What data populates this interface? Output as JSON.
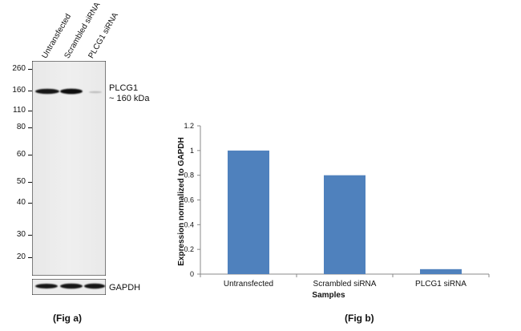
{
  "figure_a": {
    "caption": "(Fig a)",
    "lanes": [
      "Untransfected",
      "Scrambled siRNA",
      "PLCG1 siRNA"
    ],
    "markers": [
      "260",
      "160",
      "110",
      "80",
      "60",
      "50",
      "40",
      "30",
      "20"
    ],
    "band_label": "PLCG1",
    "band_size": "~ 160 kDa",
    "loading_control": "GAPDH"
  },
  "figure_b": {
    "caption": "(Fig b)"
  },
  "chart_data": {
    "type": "bar",
    "title": "",
    "xlabel": "Samples",
    "ylabel": "Expression normalized to GAPDH",
    "categories": [
      "Untransfected",
      "Scrambled siRNA",
      "PLCG1 siRNA"
    ],
    "values": [
      1.0,
      0.8,
      0.04
    ],
    "ylim": [
      0,
      1.2
    ],
    "yticks": [
      "0",
      "0.2",
      "0.4",
      "0.6",
      "0.8",
      "1",
      "1.2"
    ],
    "bar_color": "#4f81bd",
    "grid": false,
    "legend": "none"
  }
}
